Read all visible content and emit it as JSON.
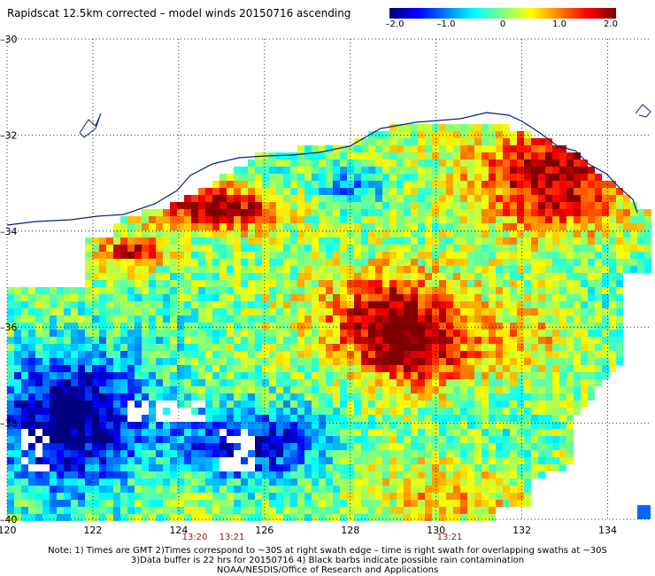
{
  "title": "Rapidscat 12.5km corrected – model winds 20150716 ascending",
  "colorbar": {
    "labels": [
      "–2.0",
      "–1.0",
      "0",
      "1.0",
      "2.0"
    ],
    "values": [
      -2.0,
      -1.0,
      0,
      1.0,
      2.0
    ],
    "min": -2.0,
    "max": 2.0
  },
  "axes": {
    "lon_ticks": [
      "120",
      "122",
      "124",
      "126",
      "128",
      "130",
      "132",
      "134"
    ],
    "lat_ticks": [
      "–30",
      "–32",
      "–34",
      "–36",
      "–38",
      "–40"
    ],
    "lon_range": [
      120,
      135
    ],
    "lat_range": [
      -40,
      -30
    ]
  },
  "swath_times": [
    "13:20",
    "13:21",
    "13:21"
  ],
  "notes": [
    "Note: 1) Times are GMT 2)Times correspond to ~30S at right swath edge – time is right swath for overlapping swaths at ~30S",
    "3)Data buffer is 22 hrs for 20150716 4) Black barbs indicate possible rain contamination",
    "NOAA/NESDIS/Office of Research and Applications"
  ]
}
